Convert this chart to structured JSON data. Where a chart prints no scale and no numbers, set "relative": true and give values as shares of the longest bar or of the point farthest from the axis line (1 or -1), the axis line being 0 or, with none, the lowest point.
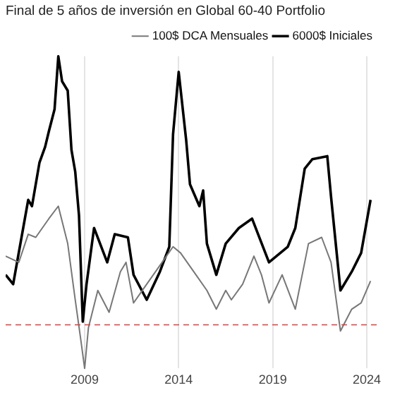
{
  "chart_data": {
    "type": "line",
    "title": "Final de 5 años de inversión en Global 60-40 Portfolio",
    "relative": true,
    "xlim": [
      2004.8,
      2024.6
    ],
    "xticks": [
      2009,
      2014,
      2019,
      2024
    ],
    "grid": "x",
    "legend": "top right",
    "marker": "none",
    "line_style": "solid",
    "series": [
      {
        "name": "100$ DCA Mensuales",
        "color": "#777777",
        "x": [
          2004.8,
          2005.5,
          2006.0,
          2006.4,
          2007.1,
          2007.6,
          2008.1,
          2008.5,
          2008.8,
          2009.0,
          2009.2,
          2009.7,
          2010.3,
          2010.9,
          2011.2,
          2011.6,
          2012.3,
          2013.0,
          2013.7,
          2014.1,
          2014.8,
          2015.5,
          2016.0,
          2016.5,
          2016.8,
          2017.4,
          2018.0,
          2018.4,
          2018.8,
          2019.5,
          2020.2,
          2020.9,
          2021.6,
          2022.1,
          2022.6,
          2023.2,
          2023.7,
          2024.2
        ],
        "values": [
          0.36,
          0.34,
          0.43,
          0.42,
          0.48,
          0.52,
          0.4,
          0.22,
          0.09,
          0,
          0.13,
          0.25,
          0.18,
          0.31,
          0.34,
          0.21,
          0.27,
          0.33,
          0.39,
          0.37,
          0.31,
          0.25,
          0.19,
          0.25,
          0.22,
          0.27,
          0.36,
          0.3,
          0.21,
          0.3,
          0.19,
          0.4,
          0.42,
          0.34,
          0.12,
          0.19,
          0.21,
          0.28
        ]
      },
      {
        "name": "6000$ Iniciales",
        "color": "#000000",
        "x": [
          2004.8,
          2005.2,
          2006.0,
          2006.2,
          2006.6,
          2006.9,
          2007.1,
          2007.4,
          2007.6,
          2007.8,
          2008.1,
          2008.3,
          2008.5,
          2008.7,
          2008.9,
          2009.1,
          2009.5,
          2010.2,
          2010.6,
          2011.3,
          2011.6,
          2012.3,
          2013.0,
          2013.5,
          2013.7,
          2014.0,
          2014.4,
          2014.6,
          2015.1,
          2015.3,
          2015.5,
          2016.0,
          2016.5,
          2017.2,
          2017.9,
          2018.8,
          2019.8,
          2020.2,
          2020.7,
          2021.1,
          2021.9,
          2022.1,
          2022.6,
          2023.2,
          2023.7,
          2024.2
        ],
        "values": [
          0.3,
          0.27,
          0.54,
          0.52,
          0.66,
          0.71,
          0.76,
          0.83,
          1.0,
          0.92,
          0.89,
          0.7,
          0.63,
          0.49,
          0.15,
          0.27,
          0.45,
          0.34,
          0.43,
          0.42,
          0.3,
          0.22,
          0.31,
          0.39,
          0.75,
          0.95,
          0.73,
          0.59,
          0.52,
          0.57,
          0.4,
          0.3,
          0.4,
          0.45,
          0.48,
          0.34,
          0.39,
          0.45,
          0.64,
          0.67,
          0.68,
          0.55,
          0.25,
          0.31,
          0.37,
          0.54
        ]
      }
    ],
    "ref_lines": [
      {
        "axis": "y",
        "value": 0.14,
        "color": "#e03c3c",
        "line_style": "dashed"
      }
    ]
  }
}
